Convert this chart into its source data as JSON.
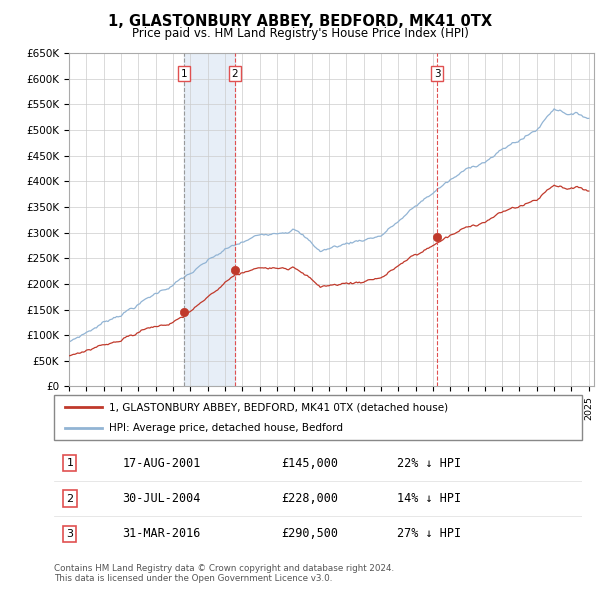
{
  "title": "1, GLASTONBURY ABBEY, BEDFORD, MK41 0TX",
  "subtitle": "Price paid vs. HM Land Registry's House Price Index (HPI)",
  "ylim": [
    0,
    650000
  ],
  "yticks": [
    0,
    50000,
    100000,
    150000,
    200000,
    250000,
    300000,
    350000,
    400000,
    450000,
    500000,
    550000,
    600000,
    650000
  ],
  "ytick_labels": [
    "£0",
    "£50K",
    "£100K",
    "£150K",
    "£200K",
    "£250K",
    "£300K",
    "£350K",
    "£400K",
    "£450K",
    "£500K",
    "£550K",
    "£600K",
    "£650K"
  ],
  "hpi_color": "#92b4d4",
  "sale_color": "#c0392b",
  "vline_color_1": "#999999",
  "vline_color_23": "#e05050",
  "vline_shade_color": "#dde8f5",
  "transactions": [
    {
      "date_year": 2001.63,
      "price": 145000,
      "label": "1",
      "pct": "22% ↓ HPI",
      "date_str": "17-AUG-2001",
      "price_str": "£145,000"
    },
    {
      "date_year": 2004.58,
      "price": 228000,
      "label": "2",
      "pct": "14% ↓ HPI",
      "date_str": "30-JUL-2004",
      "price_str": "£228,000"
    },
    {
      "date_year": 2016.25,
      "price": 290500,
      "label": "3",
      "pct": "27% ↓ HPI",
      "date_str": "31-MAR-2016",
      "price_str": "£290,500"
    }
  ],
  "legend_entries": [
    "1, GLASTONBURY ABBEY, BEDFORD, MK41 0TX (detached house)",
    "HPI: Average price, detached house, Bedford"
  ],
  "footer": "Contains HM Land Registry data © Crown copyright and database right 2024.\nThis data is licensed under the Open Government Licence v3.0.",
  "background_color": "#ffffff",
  "grid_color": "#cccccc",
  "xstart": 1995,
  "xend": 2025
}
